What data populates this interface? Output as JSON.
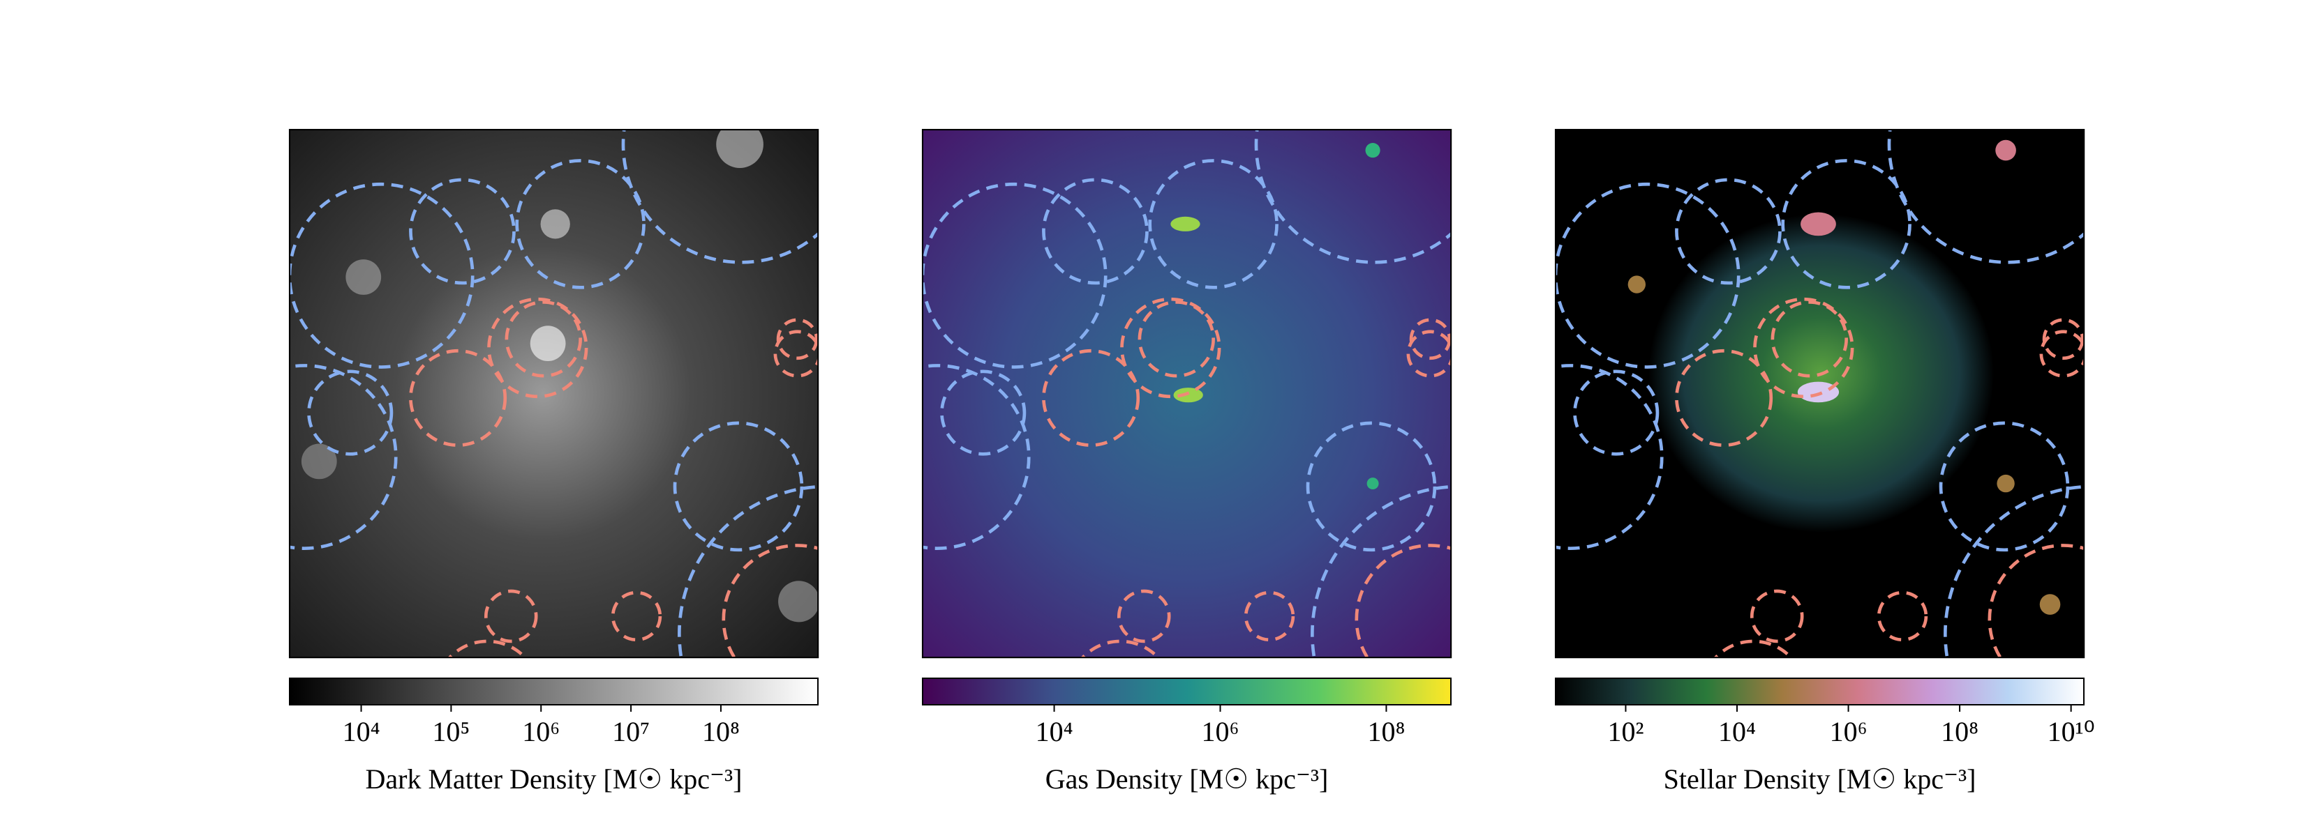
{
  "chart_data": [
    {
      "type": "image",
      "colorbar_label": "Dark Matter Density [M☉ kpc⁻³]",
      "log_scale": true,
      "xlim": [
        1600,
        1200000000
      ],
      "xticks": [
        {
          "value": 10000,
          "label": "10⁴"
        },
        {
          "value": 100000,
          "label": "10⁵"
        },
        {
          "value": 1000000,
          "label": "10⁶"
        },
        {
          "value": 10000000,
          "label": "10⁷"
        },
        {
          "value": 100000000,
          "label": "10⁸"
        }
      ],
      "colormap": [
        "#000000",
        "#404040",
        "#808080",
        "#c0c0c0",
        "#ffffff"
      ]
    },
    {
      "type": "image",
      "colorbar_label": "Gas Density [M☉ kpc⁻³]",
      "log_scale": true,
      "xlim": [
        260,
        600000000
      ],
      "xticks": [
        {
          "value": 10000,
          "label": "10⁴"
        },
        {
          "value": 1000000,
          "label": "10⁶"
        },
        {
          "value": 100000000,
          "label": "10⁸"
        }
      ],
      "colormap": [
        "#440154",
        "#3b528b",
        "#21908d",
        "#5dc963",
        "#fde725"
      ]
    },
    {
      "type": "image",
      "colorbar_label": "Stellar Density [M☉ kpc⁻³]",
      "log_scale": true,
      "xlim": [
        5.5,
        17000000000
      ],
      "xticks": [
        {
          "value": 100,
          "label": "10²"
        },
        {
          "value": 10000,
          "label": "10⁴"
        },
        {
          "value": 1000000,
          "label": "10⁶"
        },
        {
          "value": 100000000,
          "label": "10⁸"
        },
        {
          "value": 10000000000,
          "label": "10¹⁰"
        }
      ],
      "colormap": [
        "#000000",
        "#1a3a3a",
        "#2a7a3a",
        "#a07a40",
        "#d07a8a",
        "#c89ad8",
        "#b8d4f4",
        "#ffffff"
      ]
    }
  ]
}
